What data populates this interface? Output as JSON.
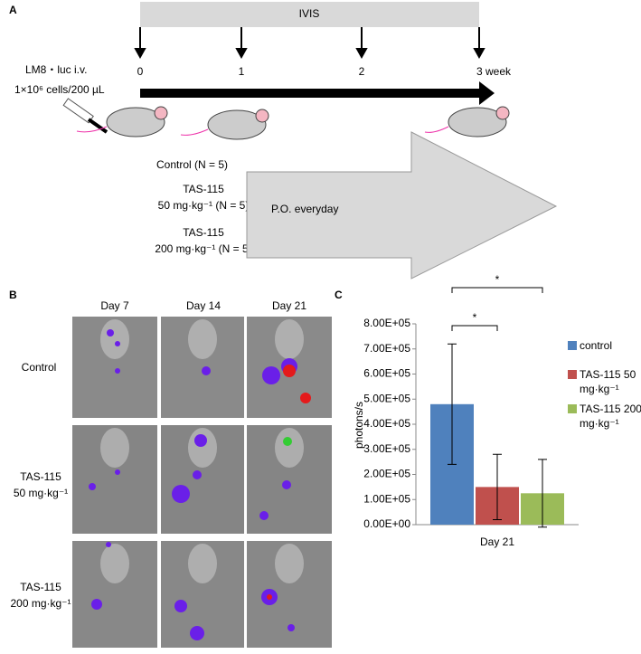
{
  "panel_a": {
    "label": "A",
    "bar_label": "IVIS",
    "timepoints": [
      "0",
      "1",
      "2",
      "3 week"
    ],
    "injection": [
      "LM8・luc  i.v.",
      "1×10⁶ cells/200 µL"
    ],
    "groups": [
      "Control (N = 5)",
      "TAS-115",
      "50 mg·kg⁻¹ (N = 5)",
      "TAS-115",
      "200 mg·kg⁻¹ (N = 5)"
    ],
    "treatment": "P.O. everyday"
  },
  "panel_b": {
    "label": "B",
    "columns": [
      "Day 7",
      "Day 14",
      "Day 21"
    ],
    "rows": [
      [
        "Control"
      ],
      [
        "TAS-115",
        "50 mg·kg⁻¹"
      ],
      [
        "TAS-115",
        "200 mg·kg⁻¹"
      ]
    ]
  },
  "chart_data": {
    "type": "bar",
    "panel_label": "C",
    "y_label": "photons/s",
    "categories": [
      "Day 21"
    ],
    "series": [
      {
        "name": "control",
        "color": "#4f81bd",
        "values": [
          480000
        ],
        "errors": [
          240000
        ]
      },
      {
        "name": "TAS-115 50 mg·kg⁻¹",
        "color": "#c0504d",
        "values": [
          150000
        ],
        "errors": [
          130000
        ]
      },
      {
        "name": "TAS-115 200 mg·kg⁻¹",
        "color": "#9bbb59",
        "values": [
          125000
        ],
        "errors": [
          135000
        ]
      }
    ],
    "ylim": [
      0,
      800000
    ],
    "yticks": [
      {
        "value": 0,
        "label": "0.00E+00"
      },
      {
        "value": 100000,
        "label": "1.00E+05"
      },
      {
        "value": 200000,
        "label": "2.00E+05"
      },
      {
        "value": 300000,
        "label": "3.00E+05"
      },
      {
        "value": 400000,
        "label": "4.00E+05"
      },
      {
        "value": 500000,
        "label": "5.00E+05"
      },
      {
        "value": 600000,
        "label": "6.00E+05"
      },
      {
        "value": 700000,
        "label": "7.00E+05"
      },
      {
        "value": 800000,
        "label": "8.00E+05"
      }
    ],
    "annotations": [
      "*",
      "*"
    ],
    "grid": false
  }
}
